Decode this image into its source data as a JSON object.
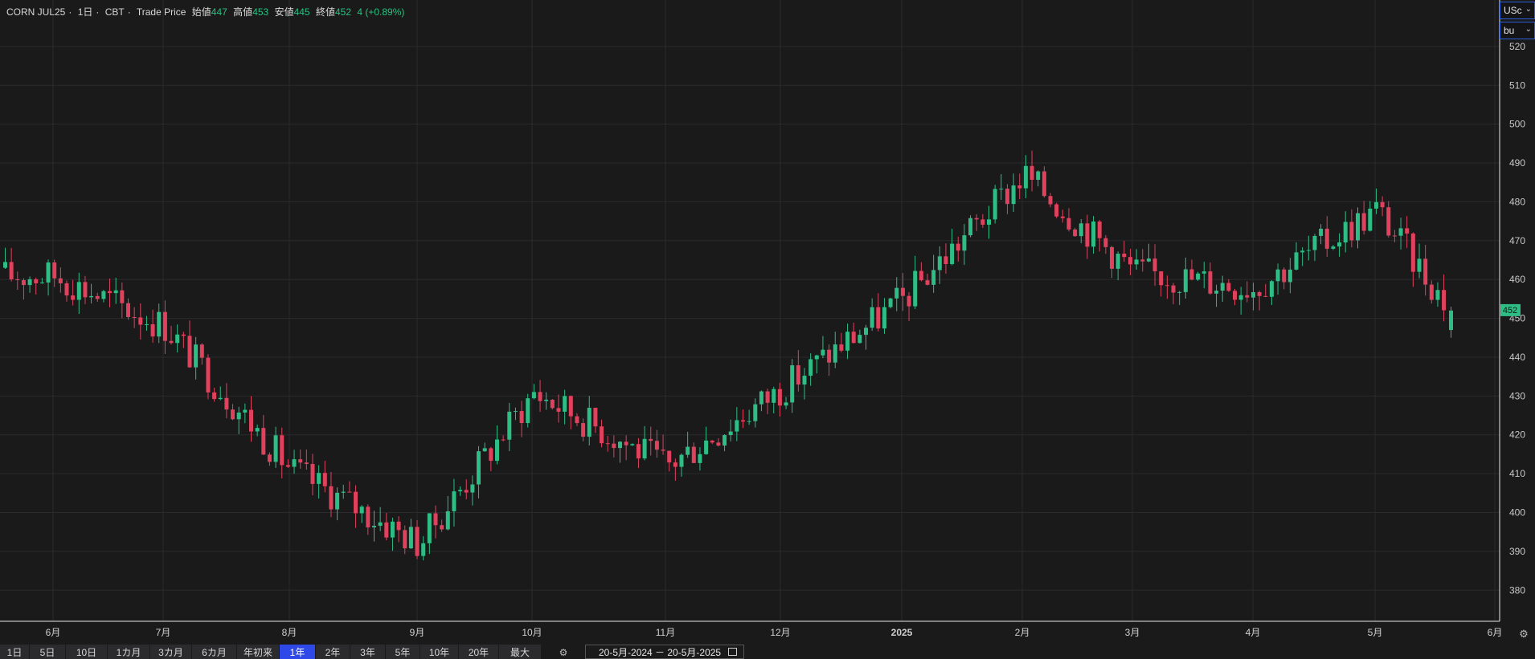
{
  "header": {
    "symbol": "CORN JUL25",
    "sep1": "·",
    "interval": "1日",
    "sep2": "·",
    "exchange": "CBT",
    "sep3": "·",
    "price_type": "Trade Price",
    "open_label": "始値",
    "open_value": "447",
    "high_label": "高値",
    "high_value": "453",
    "low_label": "安値",
    "low_value": "445",
    "close_label": "終値",
    "close_value": "452",
    "change": "4 (+0.89%)"
  },
  "unit_currency": "USc",
  "unit_measure": "bu",
  "last_price_label": "452",
  "periods": [
    "1日",
    "5日",
    "10日",
    "1カ月",
    "3カ月",
    "6カ月",
    "年初来",
    "1年",
    "2年",
    "3年",
    "5年",
    "10年",
    "20年",
    "最大"
  ],
  "active_period": "1年",
  "date_range": "20-5月-2024 － 20-5月-2025",
  "colors": {
    "up": "#2ebd85",
    "down": "#e0415d",
    "background": "#1a1a1b",
    "grid": "#2b2b2e",
    "active_period": "#2f49e8"
  },
  "chart_data": {
    "type": "candlestick",
    "title": "",
    "ylim": [
      372,
      527
    ],
    "y_ticks": [
      380,
      390,
      400,
      410,
      420,
      430,
      440,
      450,
      460,
      470,
      480,
      490,
      500,
      510,
      520
    ],
    "x_ticks": [
      "6月",
      "7月",
      "8月",
      "9月",
      "10月",
      "11月",
      "12月",
      "2025",
      "2月",
      "3月",
      "4月",
      "5月",
      "6月"
    ],
    "grid": true,
    "last_price": 452,
    "monthly_path": [
      {
        "x_label": "6月",
        "close": 461
      },
      {
        "x_label": "7月",
        "close": 448
      },
      {
        "x_label": "8月",
        "close": 411
      },
      {
        "x_label": "9月",
        "close": 392
      },
      {
        "x_label": "10月",
        "close": 431
      },
      {
        "x_label": "11月",
        "close": 412
      },
      {
        "x_label": "12月",
        "close": 432
      },
      {
        "x_label": "2025",
        "close": 455
      },
      {
        "x_label": "2月",
        "close": 487
      },
      {
        "x_label": "3月",
        "close": 462
      },
      {
        "x_label": "4月",
        "close": 458
      },
      {
        "x_label": "5月",
        "close": 478
      }
    ],
    "last_candle": {
      "open": 447,
      "high": 453,
      "low": 445,
      "close": 452
    }
  }
}
